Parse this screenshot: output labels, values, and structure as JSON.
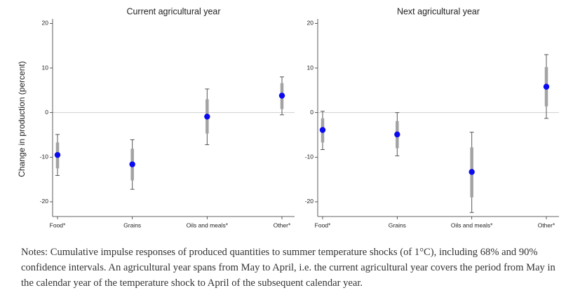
{
  "chart_data": [
    {
      "type": "errorbar",
      "title": "Current agricultural year",
      "ylabel": "Change in production  (percent)",
      "categories": [
        "Food*",
        "Grains",
        "Oils and meals*",
        "Other*"
      ],
      "values": [
        -9.5,
        -11.6,
        -0.9,
        3.8
      ],
      "ci68": [
        [
          -12.5,
          -6.7
        ],
        [
          -15.2,
          -8.1
        ],
        [
          -4.7,
          3.0
        ],
        [
          0.8,
          6.6
        ]
      ],
      "ci90": [
        [
          -14.1,
          -4.9
        ],
        [
          -17.2,
          -6.1
        ],
        [
          -7.2,
          5.3
        ],
        [
          -0.5,
          8.0
        ]
      ],
      "color": "#0a0af0",
      "ci68_color": "#a3a3a3",
      "ci90_color": "#555555",
      "ylim": [
        -23.3,
        21
      ],
      "yticks": [
        -20,
        -10,
        0,
        10,
        20
      ],
      "refline": 0
    },
    {
      "type": "errorbar",
      "title": "Next agricultural year",
      "categories": [
        "Food*",
        "Grains",
        "Oils and meals*",
        "Other*"
      ],
      "values": [
        -3.9,
        -4.9,
        -13.3,
        5.8
      ],
      "ci68": [
        [
          -6.7,
          -1.3
        ],
        [
          -8.0,
          -1.9
        ],
        [
          -19.0,
          -7.8
        ],
        [
          1.4,
          10.2
        ]
      ],
      "ci90": [
        [
          -8.3,
          0.3
        ],
        [
          -9.7,
          0.0
        ],
        [
          -22.4,
          -4.4
        ],
        [
          -1.3,
          13.0
        ]
      ],
      "color": "#0a0af0",
      "ci68_color": "#a3a3a3",
      "ci90_color": "#555555",
      "ylim": [
        -23.3,
        21
      ],
      "yticks": [
        -20,
        -10,
        0,
        10,
        20
      ],
      "refline": 0
    }
  ],
  "notes": "Notes: Cumulative impulse responses of produced quantities to summer temperature shocks (of 1°C), including 68% and 90% confidence intervals. An agricultural year spans from May to April, i.e. the current agricultural year covers the period from May in the calendar year of the temperature shock to April of the subsequent calendar year."
}
